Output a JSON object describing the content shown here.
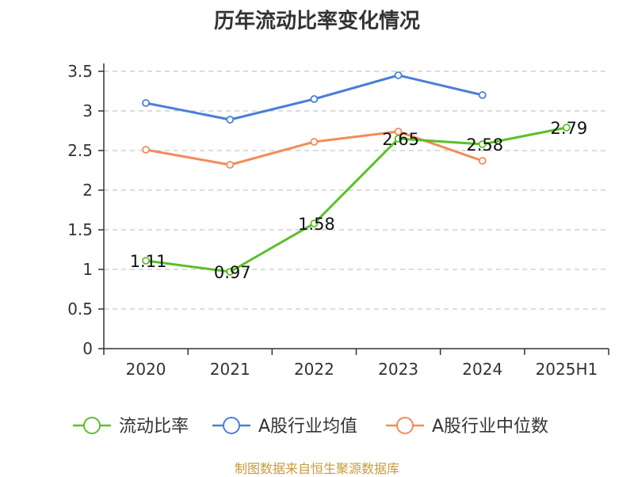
{
  "chart_data": {
    "type": "line",
    "title": "历年流动比率变化情况",
    "categories": [
      "2020",
      "2021",
      "2022",
      "2023",
      "2024",
      "2025H1"
    ],
    "ylim": [
      0,
      3.5
    ],
    "yticks": [
      "0",
      "0.5",
      "1",
      "1.5",
      "2",
      "2.5",
      "3",
      "3.5"
    ],
    "grid": true,
    "legend_position": "bottom",
    "series": [
      {
        "name": "流动比率",
        "color": "#5cbf2a",
        "values": [
          1.11,
          0.97,
          1.58,
          2.65,
          2.58,
          2.79
        ],
        "labels": [
          "1.11",
          "0.97",
          "1.58",
          "2.65",
          "2.58",
          "2.79"
        ]
      },
      {
        "name": "A股行业均值",
        "color": "#4a7fd6",
        "values": [
          3.1,
          2.89,
          3.15,
          3.45,
          3.2,
          null
        ]
      },
      {
        "name": "A股行业中位数",
        "color": "#f28c5a",
        "values": [
          2.51,
          2.32,
          2.61,
          2.74,
          2.37,
          null
        ]
      }
    ],
    "source": "制图数据来自恒生聚源数据库"
  }
}
